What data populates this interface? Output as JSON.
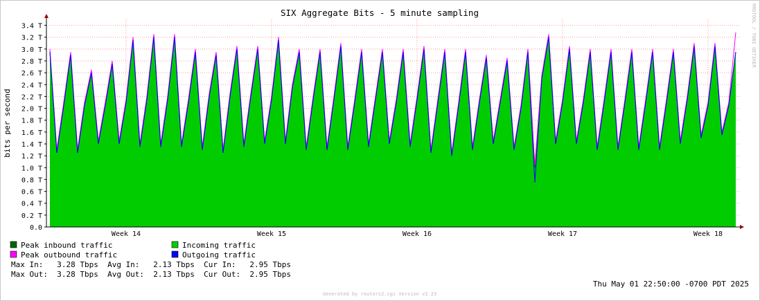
{
  "chart_data": {
    "type": "area",
    "title": "SIX Aggregate Bits - 5 minute sampling",
    "y_label": "bits per second",
    "side_note": "RRDTOOL / TOBI OETIKER",
    "timestamp": "Thu May 01 22:50:00 -0700 PDT 2025",
    "footer": "Generated by routers2.cgi Version v2.23",
    "stats": [
      "Max In:   3.28 Tbps  Avg In:   2.13 Tbps  Cur In:   2.95 Tbps",
      "Max Out:  3.28 Tbps  Avg Out:  2.13 Tbps  Cur Out:  2.95 Tbps"
    ],
    "grid": true,
    "ylim": [
      0,
      3.5
    ],
    "yticks": [
      {
        "value": 0,
        "label": "0.0"
      },
      {
        "value": 0.2,
        "label": "0.2 T"
      },
      {
        "value": 0.4,
        "label": "0.4 T"
      },
      {
        "value": 0.6,
        "label": "0.6 T"
      },
      {
        "value": 0.8,
        "label": "0.8 T"
      },
      {
        "value": 1.0,
        "label": "1.0 T"
      },
      {
        "value": 1.2,
        "label": "1.2 T"
      },
      {
        "value": 1.4,
        "label": "1.4 T"
      },
      {
        "value": 1.6,
        "label": "1.6 T"
      },
      {
        "value": 1.8,
        "label": "1.8 T"
      },
      {
        "value": 2.0,
        "label": "2.0 T"
      },
      {
        "value": 2.2,
        "label": "2.2 T"
      },
      {
        "value": 2.4,
        "label": "2.4 T"
      },
      {
        "value": 2.6,
        "label": "2.6 T"
      },
      {
        "value": 2.8,
        "label": "2.8 T"
      },
      {
        "value": 3.0,
        "label": "3.0 T"
      },
      {
        "value": 3.2,
        "label": "3.2 T"
      },
      {
        "value": 3.4,
        "label": "3.4 T"
      }
    ],
    "categories": [
      null,
      null,
      null,
      null,
      null,
      null,
      null,
      null,
      null,
      null,
      null,
      "Week 14",
      null,
      null,
      null,
      null,
      null,
      null,
      null,
      null,
      null,
      null,
      null,
      null,
      null,
      null,
      null,
      null,
      null,
      null,
      null,
      null,
      "Week 15",
      null,
      null,
      null,
      null,
      null,
      null,
      null,
      null,
      null,
      null,
      null,
      null,
      null,
      null,
      null,
      null,
      null,
      null,
      null,
      null,
      "Week 16",
      null,
      null,
      null,
      null,
      null,
      null,
      null,
      null,
      null,
      null,
      null,
      null,
      null,
      null,
      null,
      null,
      null,
      null,
      null,
      null,
      "Week 17",
      null,
      null,
      null,
      null,
      null,
      null,
      null,
      null,
      null,
      null,
      null,
      null,
      null,
      null,
      null,
      null,
      null,
      null,
      null,
      null,
      "Week 18",
      null,
      null,
      null,
      null
    ],
    "series": [
      {
        "name": "Peak inbound traffic",
        "color": "#006600",
        "style": "line",
        "values": [
          2.95,
          1.25,
          2.05,
          2.9,
          1.25,
          2.05,
          2.6,
          1.4,
          2.05,
          2.75,
          1.4,
          2.1,
          3.15,
          1.35,
          2.15,
          3.2,
          1.35,
          2.15,
          3.2,
          1.35,
          2.1,
          2.95,
          1.3,
          2.2,
          2.9,
          1.25,
          2.2,
          3.0,
          1.35,
          2.2,
          3.0,
          1.4,
          2.15,
          3.15,
          1.4,
          2.35,
          2.95,
          1.3,
          2.15,
          2.95,
          1.3,
          2.15,
          3.05,
          1.3,
          2.1,
          2.95,
          1.35,
          2.15,
          2.95,
          1.4,
          2.1,
          2.95,
          1.35,
          2.15,
          3.0,
          1.25,
          2.1,
          2.95,
          1.2,
          2.05,
          2.95,
          1.3,
          2.1,
          2.85,
          1.4,
          2.1,
          2.8,
          1.3,
          2.0,
          2.95,
          1.0,
          2.5,
          3.2,
          1.4,
          2.1,
          3.0,
          1.4,
          2.1,
          2.95,
          1.3,
          2.1,
          2.95,
          1.3,
          2.1,
          2.95,
          1.3,
          2.1,
          2.95,
          1.3,
          2.1,
          2.95,
          1.4,
          2.15,
          3.05,
          1.5,
          2.05,
          3.05,
          1.55,
          2.05,
          2.95
        ]
      },
      {
        "name": "Incoming traffic",
        "color": "#00cc00",
        "style": "area",
        "values": [
          2.95,
          1.25,
          2.05,
          2.9,
          1.25,
          2.05,
          2.6,
          1.4,
          2.05,
          2.75,
          1.4,
          2.1,
          3.15,
          1.35,
          2.15,
          3.2,
          1.35,
          2.15,
          3.2,
          1.35,
          2.1,
          2.95,
          1.3,
          2.2,
          2.9,
          1.25,
          2.2,
          3.0,
          1.35,
          2.2,
          3.0,
          1.4,
          2.15,
          3.15,
          1.4,
          2.35,
          2.95,
          1.3,
          2.15,
          2.95,
          1.3,
          2.15,
          3.05,
          1.3,
          2.1,
          2.95,
          1.35,
          2.15,
          2.95,
          1.4,
          2.1,
          2.95,
          1.35,
          2.15,
          3.0,
          1.25,
          2.1,
          2.95,
          1.2,
          2.05,
          2.95,
          1.3,
          2.1,
          2.85,
          1.4,
          2.1,
          2.8,
          1.3,
          2.0,
          2.95,
          1.0,
          2.5,
          3.2,
          1.4,
          2.1,
          3.0,
          1.4,
          2.1,
          2.95,
          1.3,
          2.1,
          2.95,
          1.3,
          2.1,
          2.95,
          1.3,
          2.1,
          2.95,
          1.3,
          2.1,
          2.95,
          1.4,
          2.15,
          3.05,
          1.5,
          2.05,
          3.05,
          1.55,
          2.05,
          2.95
        ]
      },
      {
        "name": "Peak outbound traffic",
        "color": "#ff00ff",
        "style": "line",
        "values": [
          3.0,
          1.3,
          2.1,
          2.95,
          1.3,
          2.1,
          2.65,
          1.45,
          2.1,
          2.8,
          1.45,
          2.15,
          3.2,
          1.4,
          2.2,
          3.25,
          1.4,
          2.2,
          3.25,
          1.4,
          2.15,
          3.0,
          1.35,
          2.25,
          2.95,
          1.3,
          2.25,
          3.05,
          1.4,
          2.25,
          3.05,
          1.45,
          2.2,
          3.2,
          1.45,
          2.4,
          3.0,
          1.35,
          2.2,
          3.0,
          1.35,
          2.2,
          3.1,
          1.35,
          2.15,
          3.0,
          1.4,
          2.2,
          3.0,
          1.45,
          2.15,
          3.0,
          1.4,
          2.2,
          3.05,
          1.3,
          2.15,
          3.0,
          1.25,
          2.1,
          3.0,
          1.35,
          2.15,
          2.9,
          1.45,
          2.15,
          2.85,
          1.35,
          2.05,
          3.0,
          1.05,
          2.55,
          3.25,
          1.45,
          2.15,
          3.05,
          1.45,
          2.15,
          3.0,
          1.35,
          2.15,
          3.0,
          1.35,
          2.15,
          3.0,
          1.35,
          2.15,
          3.0,
          1.35,
          2.15,
          3.0,
          1.45,
          2.2,
          3.1,
          1.55,
          2.1,
          3.1,
          1.6,
          2.1,
          3.28
        ]
      },
      {
        "name": "Outgoing traffic",
        "color": "#0000ff",
        "style": "line",
        "values": [
          2.95,
          1.25,
          2.05,
          2.9,
          1.25,
          2.05,
          2.6,
          1.4,
          2.05,
          2.75,
          1.4,
          2.1,
          3.15,
          1.35,
          2.15,
          3.2,
          1.35,
          2.15,
          3.2,
          1.35,
          2.1,
          2.95,
          1.3,
          2.2,
          2.9,
          1.25,
          2.2,
          3.0,
          1.35,
          2.2,
          3.0,
          1.4,
          2.15,
          3.15,
          1.4,
          2.35,
          2.95,
          1.3,
          2.15,
          2.95,
          1.3,
          2.15,
          3.05,
          1.3,
          2.1,
          2.95,
          1.35,
          2.15,
          2.95,
          1.4,
          2.1,
          2.95,
          1.35,
          2.15,
          3.0,
          1.25,
          2.1,
          2.95,
          1.2,
          2.05,
          2.95,
          1.3,
          2.1,
          2.85,
          1.4,
          2.1,
          2.8,
          1.3,
          2.0,
          2.95,
          0.75,
          2.5,
          3.2,
          1.4,
          2.1,
          3.0,
          1.4,
          2.1,
          2.95,
          1.3,
          2.1,
          2.95,
          1.3,
          2.1,
          2.95,
          1.3,
          2.1,
          2.95,
          1.3,
          2.1,
          2.95,
          1.4,
          2.15,
          3.05,
          1.5,
          2.05,
          3.05,
          1.55,
          2.05,
          2.95
        ]
      }
    ]
  }
}
